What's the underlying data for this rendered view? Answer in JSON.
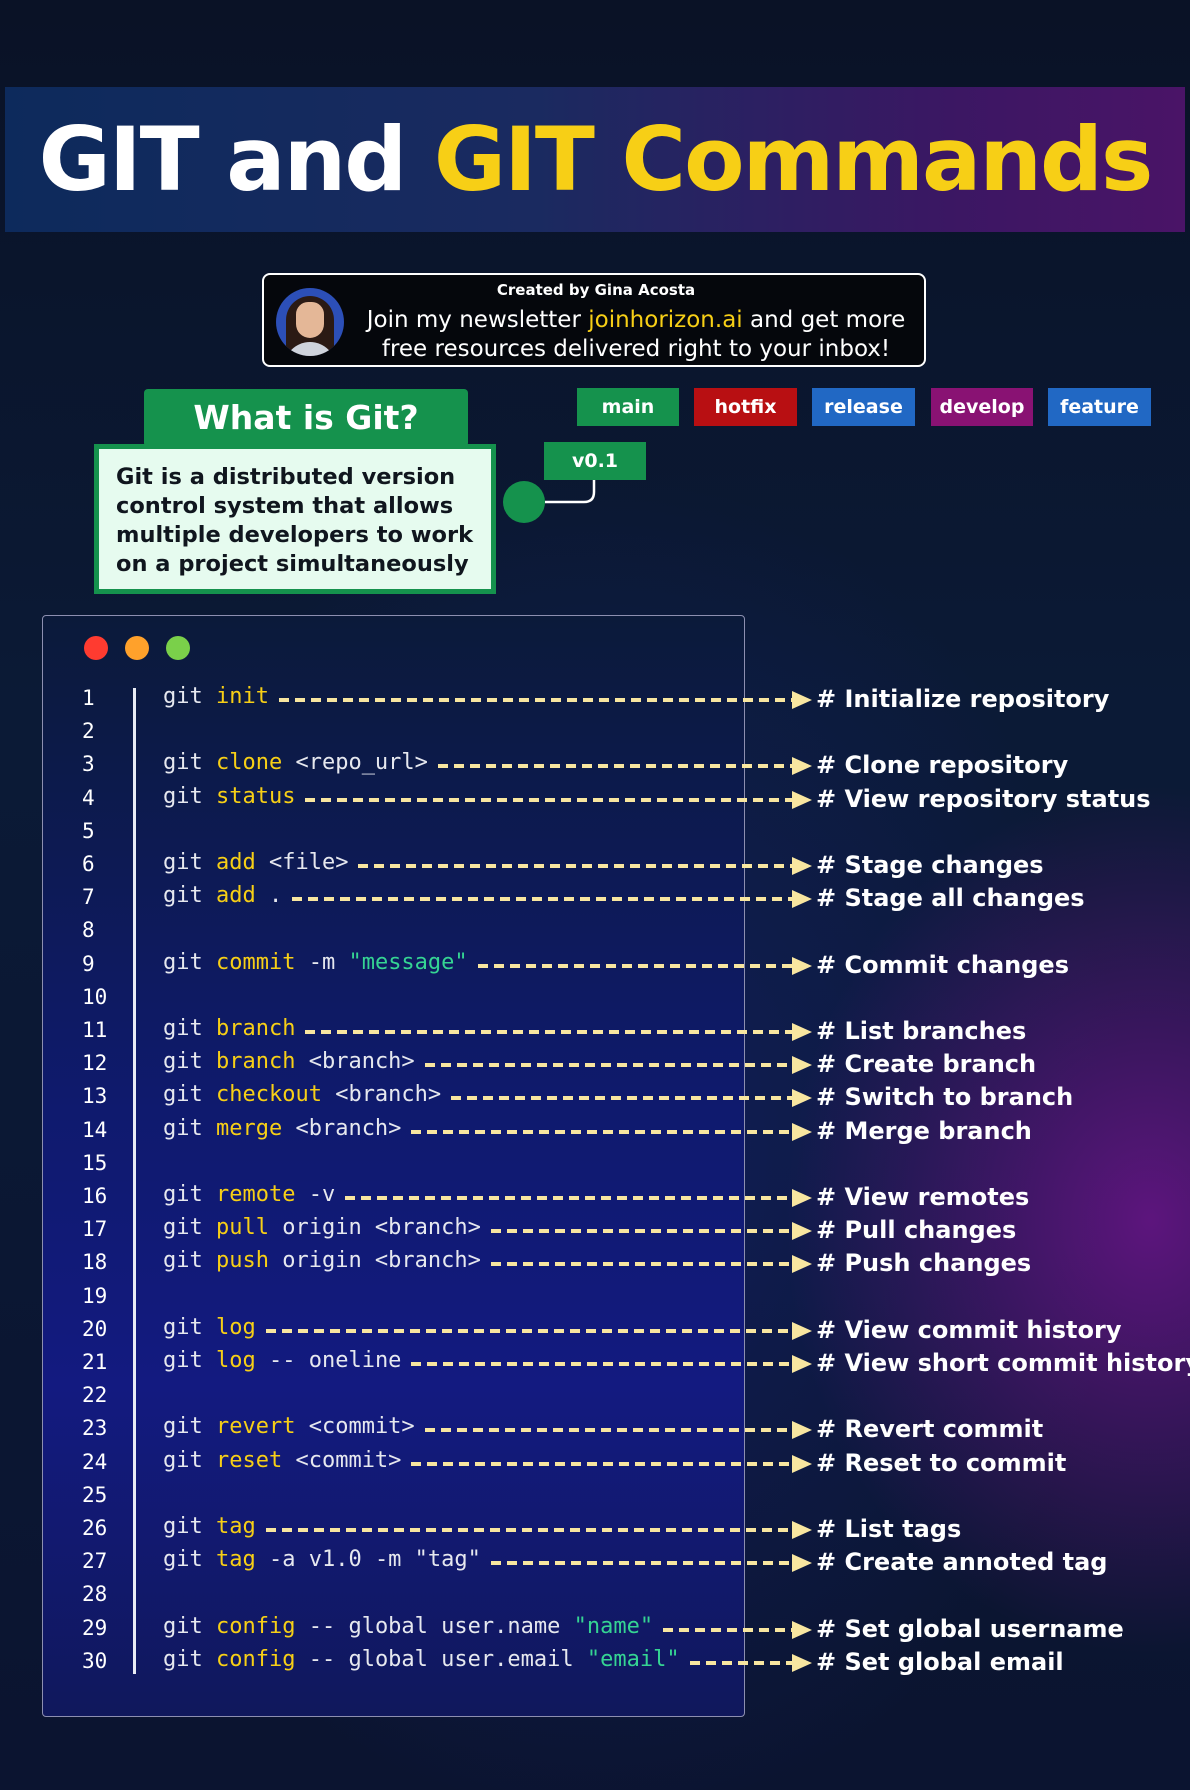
{
  "title": {
    "white": "GIT and ",
    "yellow": "GIT Commands"
  },
  "newsletter": {
    "created_by": "Created by Gina Acosta",
    "line1_pre": "Join my newsletter ",
    "link": "joinhorizon.ai",
    "line1_post": " and get more",
    "line2": "free resources delivered right to your inbox!"
  },
  "tags": {
    "main": "main",
    "hotfix": "hotfix",
    "release": "release",
    "develop": "develop",
    "feature": "feature",
    "v01": "v0.1"
  },
  "what_is_git": {
    "heading": "What is Git?",
    "description": "Git is a distributed version control system that allows multiple developers to work on a project simultaneously"
  },
  "colors": {
    "accent_yellow": "#f7cf16",
    "git_green": "#15924d",
    "hotfix_red": "#b80f12",
    "release_blue": "#2168c4",
    "develop_purple": "#891273"
  },
  "line_numbers": [
    "1",
    "2",
    "3",
    "4",
    "5",
    "6",
    "7",
    "8",
    "9",
    "10",
    "11",
    "12",
    "13",
    "14",
    "15",
    "16",
    "17",
    "18",
    "19",
    "20",
    "21",
    "22",
    "23",
    "24",
    "25",
    "26",
    "27",
    "28",
    "29",
    "30"
  ],
  "commands": [
    {
      "line": 1,
      "parts": [
        [
          "git ",
          "t"
        ],
        [
          "init",
          "k"
        ]
      ],
      "comment": "# Initialize repository"
    },
    {
      "line": 3,
      "parts": [
        [
          "git ",
          "t"
        ],
        [
          "clone",
          "k"
        ],
        [
          " <repo_url>",
          "t"
        ]
      ],
      "comment": "# Clone repository"
    },
    {
      "line": 4,
      "parts": [
        [
          "git ",
          "t"
        ],
        [
          "status",
          "k"
        ]
      ],
      "comment": "# View repository status"
    },
    {
      "line": 6,
      "parts": [
        [
          "git ",
          "t"
        ],
        [
          "add",
          "k"
        ],
        [
          " <file>",
          "t"
        ]
      ],
      "comment": "# Stage changes"
    },
    {
      "line": 7,
      "parts": [
        [
          "git ",
          "t"
        ],
        [
          "add",
          "k"
        ],
        [
          " .",
          "t"
        ]
      ],
      "comment": "# Stage all changes"
    },
    {
      "line": 9,
      "parts": [
        [
          "git ",
          "t"
        ],
        [
          "commit",
          "k"
        ],
        [
          " -m ",
          "t"
        ],
        [
          "\"message\"",
          "s"
        ]
      ],
      "comment": "# Commit changes"
    },
    {
      "line": 11,
      "parts": [
        [
          "git ",
          "t"
        ],
        [
          "branch",
          "k"
        ]
      ],
      "comment": "# List branches"
    },
    {
      "line": 12,
      "parts": [
        [
          "git ",
          "t"
        ],
        [
          "branch",
          "k"
        ],
        [
          " <branch>",
          "t"
        ]
      ],
      "comment": "# Create branch"
    },
    {
      "line": 13,
      "parts": [
        [
          "git ",
          "t"
        ],
        [
          "checkout",
          "k"
        ],
        [
          " <branch>",
          "t"
        ]
      ],
      "comment": "# Switch to branch"
    },
    {
      "line": 14,
      "parts": [
        [
          "git ",
          "t"
        ],
        [
          "merge",
          "k"
        ],
        [
          " <branch>",
          "t"
        ]
      ],
      "comment": "# Merge branch"
    },
    {
      "line": 16,
      "parts": [
        [
          "git ",
          "t"
        ],
        [
          "remote",
          "k"
        ],
        [
          " -v",
          "t"
        ]
      ],
      "comment": "# View remotes"
    },
    {
      "line": 17,
      "parts": [
        [
          "git ",
          "t"
        ],
        [
          "pull",
          "k"
        ],
        [
          " origin <branch>",
          "t"
        ]
      ],
      "comment": "# Pull changes"
    },
    {
      "line": 18,
      "parts": [
        [
          "git ",
          "t"
        ],
        [
          "push",
          "k"
        ],
        [
          " origin <branch>",
          "t"
        ]
      ],
      "comment": "# Push changes"
    },
    {
      "line": 20,
      "parts": [
        [
          "git ",
          "t"
        ],
        [
          "log",
          "k"
        ]
      ],
      "comment": "# View commit history"
    },
    {
      "line": 21,
      "parts": [
        [
          "git ",
          "t"
        ],
        [
          "log",
          "k"
        ],
        [
          " -- oneline",
          "t"
        ]
      ],
      "comment": "# View short commit history"
    },
    {
      "line": 23,
      "parts": [
        [
          "git ",
          "t"
        ],
        [
          "revert",
          "k"
        ],
        [
          " <commit>",
          "t"
        ]
      ],
      "comment": "# Revert commit"
    },
    {
      "line": 24,
      "parts": [
        [
          "git ",
          "t"
        ],
        [
          "reset",
          "k"
        ],
        [
          " <commit>",
          "t"
        ]
      ],
      "comment": "# Reset to commit"
    },
    {
      "line": 26,
      "parts": [
        [
          "git ",
          "t"
        ],
        [
          "tag",
          "k"
        ]
      ],
      "comment": "# List tags"
    },
    {
      "line": 27,
      "parts": [
        [
          "git ",
          "t"
        ],
        [
          "tag",
          "k"
        ],
        [
          " -a v1.0 -m \"tag\"",
          "t"
        ]
      ],
      "comment": "# Create annoted tag"
    },
    {
      "line": 29,
      "parts": [
        [
          "git ",
          "t"
        ],
        [
          "config",
          "k"
        ],
        [
          " -- global user.name ",
          "t"
        ],
        [
          "\"name\"",
          "s"
        ]
      ],
      "comment": "# Set global username"
    },
    {
      "line": 30,
      "parts": [
        [
          "git ",
          "t"
        ],
        [
          "config",
          "k"
        ],
        [
          " -- global user.email ",
          "t"
        ],
        [
          "\"email\"",
          "s"
        ]
      ],
      "comment": "# Set global email"
    }
  ]
}
